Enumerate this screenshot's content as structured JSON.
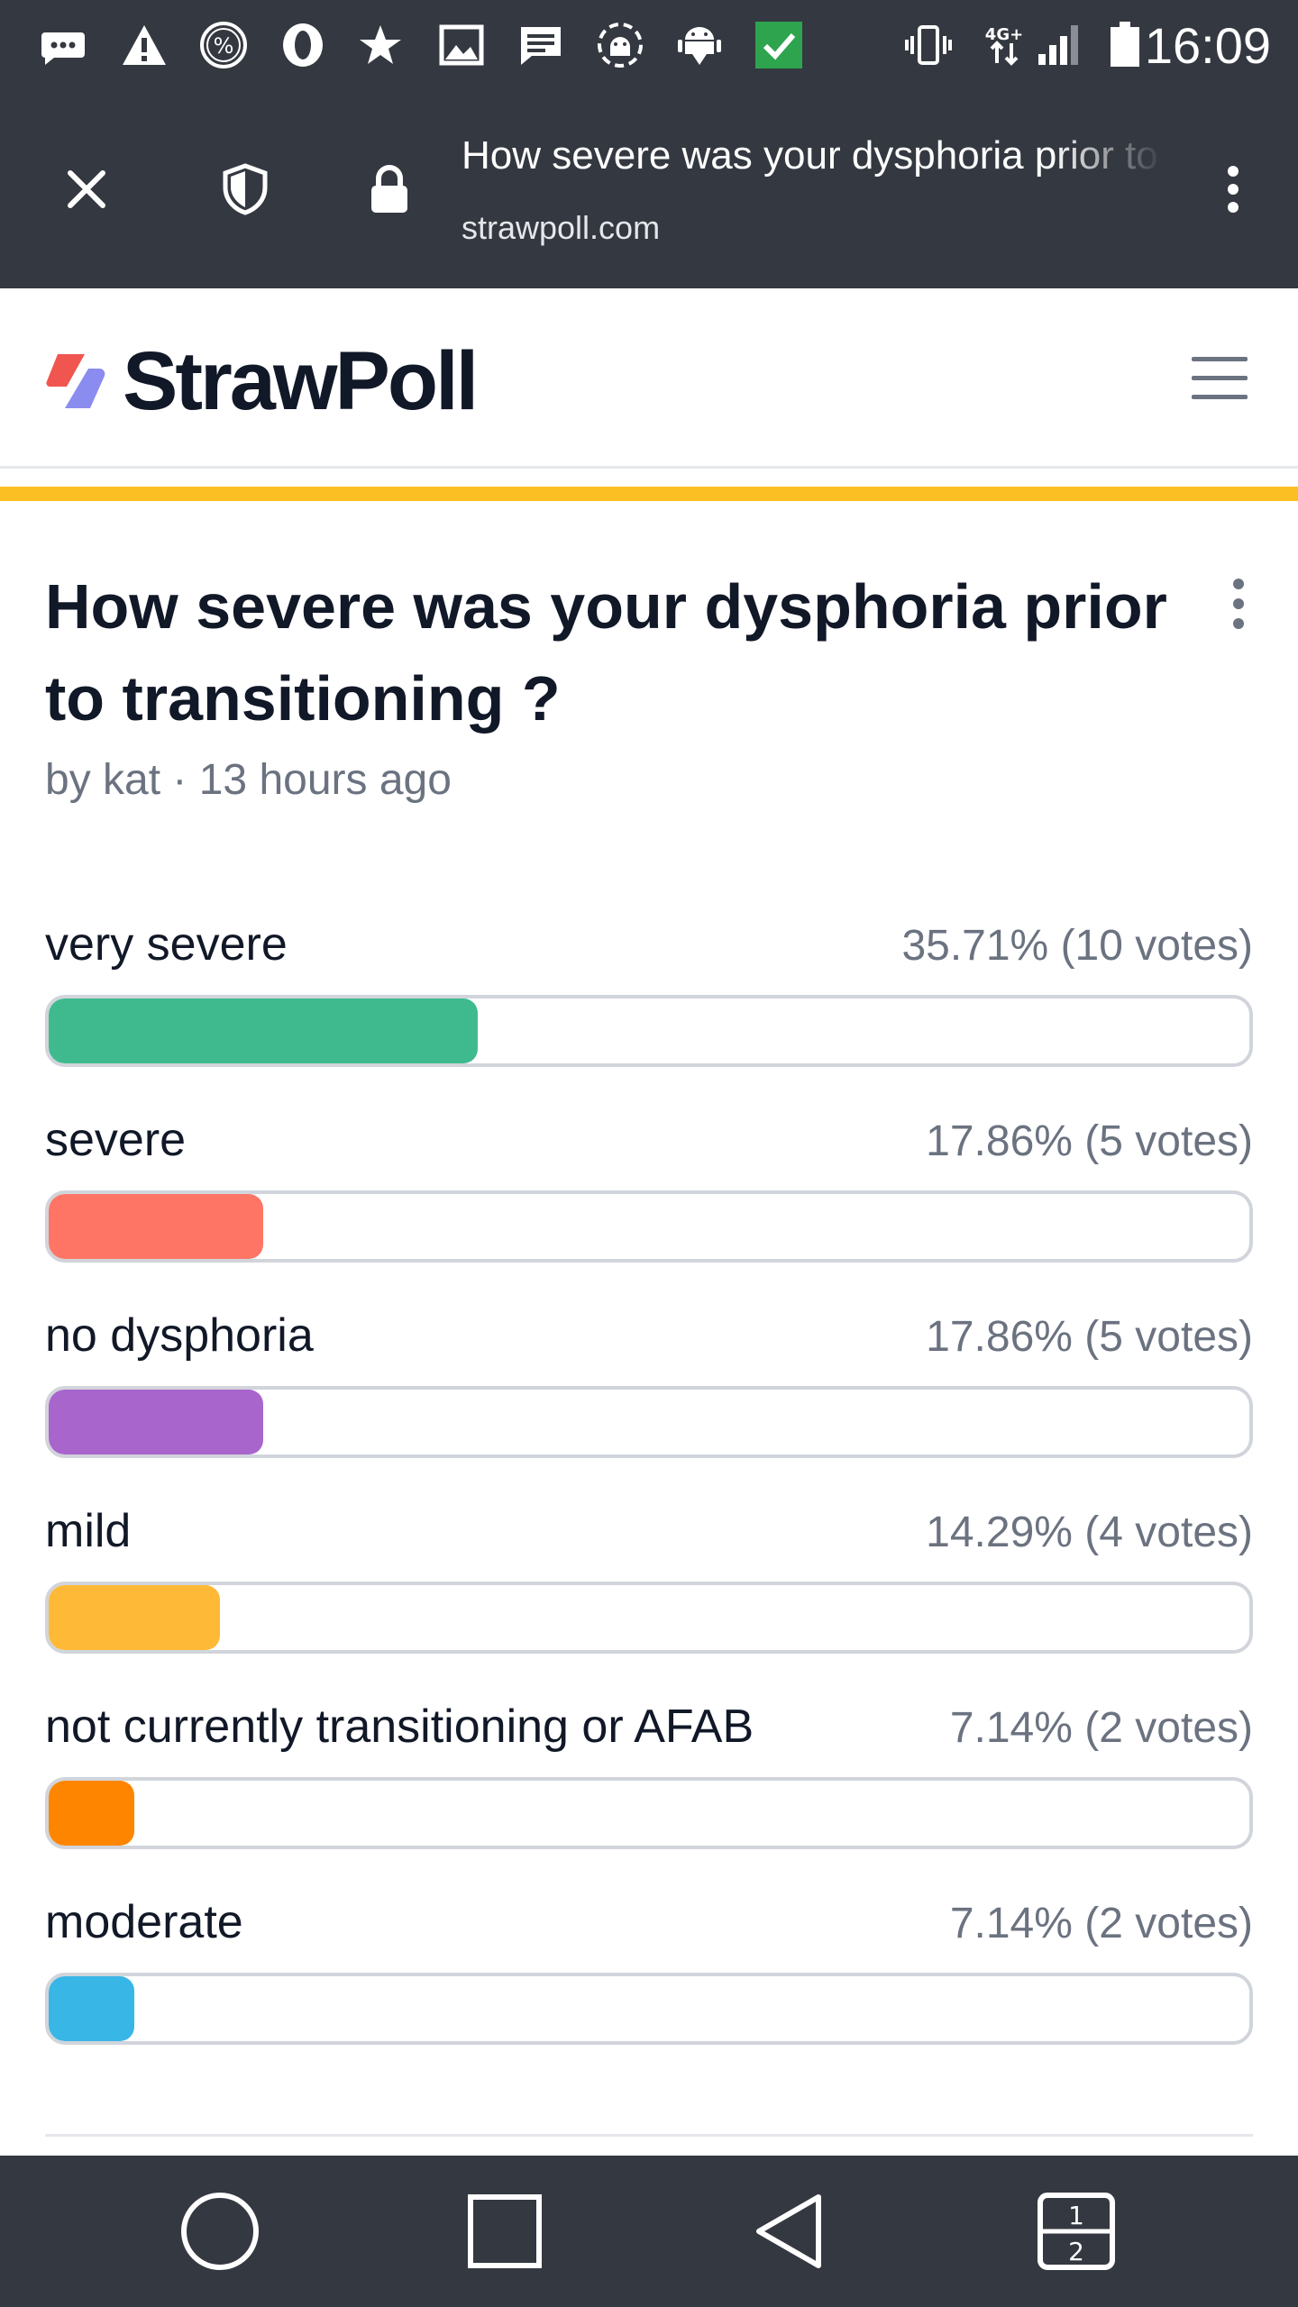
{
  "status_bar": {
    "time": "16:09",
    "network_badge": "4G+",
    "icons": [
      "message-icon",
      "warning-icon",
      "percent-icon",
      "opera-icon",
      "star-icon",
      "image-icon",
      "chat-icon",
      "android-debug-icon",
      "android-download-icon",
      "check-icon",
      "vibrate-icon",
      "network-4g-icon",
      "signal-icon",
      "battery-icon"
    ]
  },
  "browser": {
    "page_title": "How severe was your dysphoria prior to transitioning ?",
    "domain": "strawpoll.com"
  },
  "site": {
    "logo_text": "StrawPoll",
    "accent_color": "#fbbf24"
  },
  "poll": {
    "title": "How severe was your dysphoria prior to transitioning ?",
    "meta": "by kat · 13 hours ago",
    "options": [
      {
        "label": "very severe",
        "stats": "35.71% (10 votes)",
        "percent": 35.71,
        "color": "#3fba8f"
      },
      {
        "label": "severe",
        "stats": "17.86% (5 votes)",
        "percent": 17.86,
        "color": "#fe7565"
      },
      {
        "label": "no dysphoria",
        "stats": "17.86% (5 votes)",
        "percent": 17.86,
        "color": "#a865cc"
      },
      {
        "label": "mild",
        "stats": "14.29% (4 votes)",
        "percent": 14.29,
        "color": "#feb937"
      },
      {
        "label": "not currently transitioning or AFAB",
        "stats": "7.14% (2 votes)",
        "percent": 7.14,
        "color": "#fe8500"
      },
      {
        "label": "moderate",
        "stats": "7.14% (2 votes)",
        "percent": 7.14,
        "color": "#38b6e6"
      }
    ]
  },
  "nav_bar": {
    "dual_window_top": "1",
    "dual_window_bottom": "2"
  }
}
